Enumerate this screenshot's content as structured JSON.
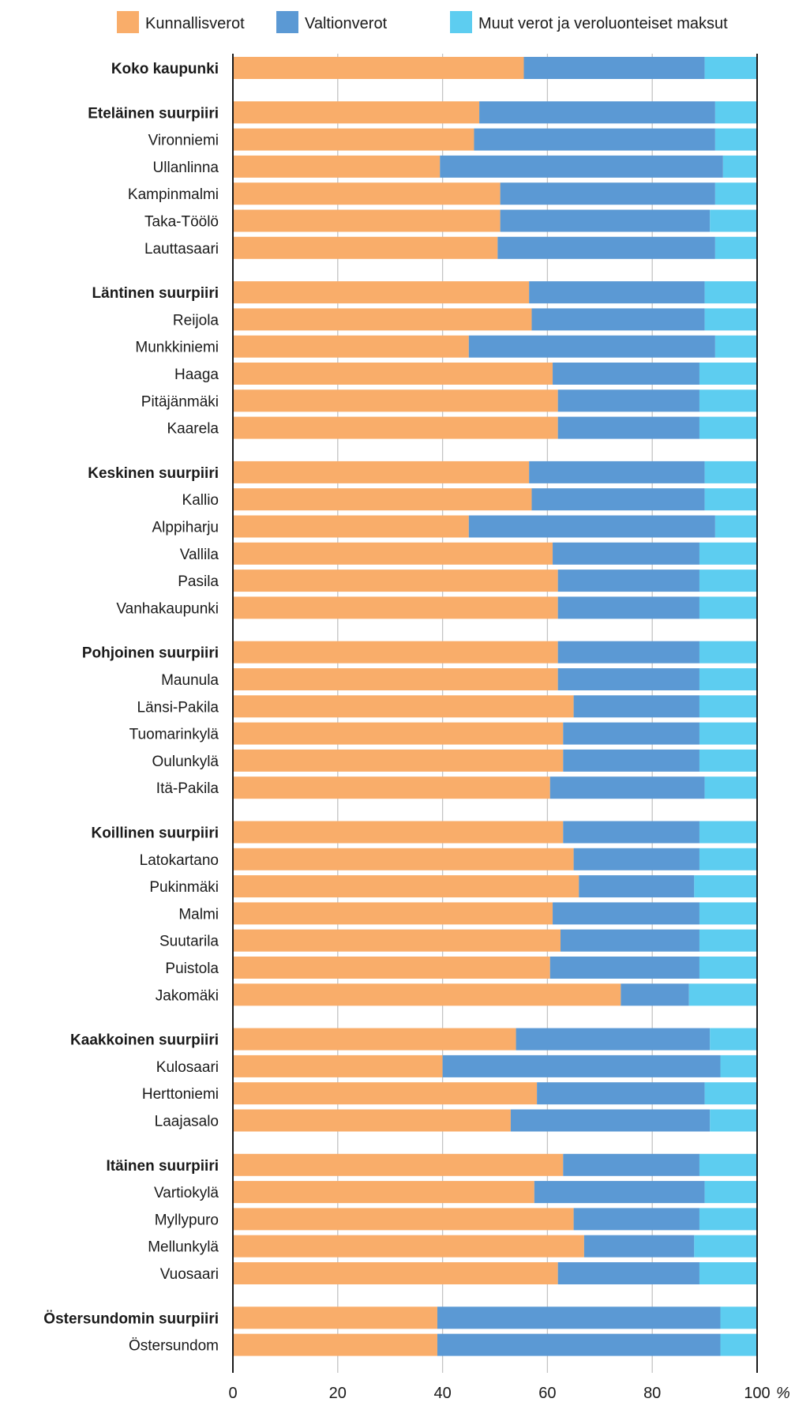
{
  "chart_data": {
    "type": "bar",
    "orientation": "horizontal",
    "stacked": true,
    "legend_position": "top",
    "xlim": [
      0,
      100
    ],
    "x_ticks": [
      "0",
      "20",
      "40",
      "60",
      "80",
      "100"
    ],
    "x_unit": "%",
    "grid": true,
    "series": [
      {
        "name": "Kunnallisverot",
        "color": "#f9ad6a"
      },
      {
        "name": "Valtionverot",
        "color": "#5b99d4"
      },
      {
        "name": "Muut verot ja veroluonteiset maksut",
        "color": "#5dcdf0"
      }
    ],
    "groups": [
      {
        "rows": [
          {
            "label": "Koko kaupunki",
            "bold": true,
            "values": [
              55.5,
              34.5,
              10.0
            ]
          }
        ]
      },
      {
        "rows": [
          {
            "label": "Eteläinen suurpiiri",
            "bold": true,
            "values": [
              47.0,
              45.0,
              8.0
            ]
          },
          {
            "label": "Vironniemi",
            "values": [
              46.0,
              46.0,
              8.0
            ]
          },
          {
            "label": "Ullanlinna",
            "values": [
              39.5,
              54.0,
              6.5
            ]
          },
          {
            "label": "Kampinmalmi",
            "values": [
              51.0,
              41.0,
              8.0
            ]
          },
          {
            "label": "Taka-Töölö",
            "values": [
              51.0,
              40.0,
              9.0
            ]
          },
          {
            "label": "Lauttasaari",
            "values": [
              50.5,
              41.5,
              8.0
            ]
          }
        ]
      },
      {
        "rows": [
          {
            "label": "Läntinen suurpiiri",
            "bold": true,
            "values": [
              56.5,
              33.5,
              10.0
            ]
          },
          {
            "label": "Reijola",
            "values": [
              57.0,
              33.0,
              10.0
            ]
          },
          {
            "label": "Munkkiniemi",
            "values": [
              45.0,
              47.0,
              8.0
            ]
          },
          {
            "label": "Haaga",
            "values": [
              61.0,
              28.0,
              11.0
            ]
          },
          {
            "label": "Pitäjänmäki",
            "values": [
              62.0,
              27.0,
              11.0
            ]
          },
          {
            "label": "Kaarela",
            "values": [
              62.0,
              27.0,
              11.0
            ]
          }
        ]
      },
      {
        "rows": [
          {
            "label": "Keskinen suurpiiri",
            "bold": true,
            "values": [
              56.5,
              33.5,
              10.0
            ]
          },
          {
            "label": "Kallio",
            "values": [
              57.0,
              33.0,
              10.0
            ]
          },
          {
            "label": "Alppiharju",
            "values": [
              45.0,
              47.0,
              8.0
            ]
          },
          {
            "label": "Vallila",
            "values": [
              61.0,
              28.0,
              11.0
            ]
          },
          {
            "label": "Pasila",
            "values": [
              62.0,
              27.0,
              11.0
            ]
          },
          {
            "label": "Vanhakaupunki",
            "values": [
              62.0,
              27.0,
              11.0
            ]
          }
        ]
      },
      {
        "rows": [
          {
            "label": "Pohjoinen suurpiiri",
            "bold": true,
            "values": [
              62.0,
              27.0,
              11.0
            ]
          },
          {
            "label": "Maunula",
            "values": [
              62.0,
              27.0,
              11.0
            ]
          },
          {
            "label": "Länsi-Pakila",
            "values": [
              65.0,
              24.0,
              11.0
            ]
          },
          {
            "label": "Tuomarinkylä",
            "values": [
              63.0,
              26.0,
              11.0
            ]
          },
          {
            "label": "Oulunkylä",
            "values": [
              63.0,
              26.0,
              11.0
            ]
          },
          {
            "label": "Itä-Pakila",
            "values": [
              60.5,
              29.5,
              10.0
            ]
          }
        ]
      },
      {
        "rows": [
          {
            "label": "Koillinen suurpiiri",
            "bold": true,
            "values": [
              63.0,
              26.0,
              11.0
            ]
          },
          {
            "label": "Latokartano",
            "values": [
              65.0,
              24.0,
              11.0
            ]
          },
          {
            "label": "Pukinmäki",
            "values": [
              66.0,
              22.0,
              12.0
            ]
          },
          {
            "label": "Malmi",
            "values": [
              61.0,
              28.0,
              11.0
            ]
          },
          {
            "label": "Suutarila",
            "values": [
              62.5,
              26.5,
              11.0
            ]
          },
          {
            "label": "Puistola",
            "values": [
              60.5,
              28.5,
              11.0
            ]
          },
          {
            "label": "Jakomäki",
            "values": [
              74.0,
              13.0,
              13.0
            ]
          }
        ]
      },
      {
        "rows": [
          {
            "label": "Kaakkoinen suurpiiri",
            "bold": true,
            "values": [
              54.0,
              37.0,
              9.0
            ]
          },
          {
            "label": "Kulosaari",
            "values": [
              40.0,
              53.0,
              7.0
            ]
          },
          {
            "label": "Herttoniemi",
            "values": [
              58.0,
              32.0,
              10.0
            ]
          },
          {
            "label": "Laajasalo",
            "values": [
              53.0,
              38.0,
              9.0
            ]
          }
        ]
      },
      {
        "rows": [
          {
            "label": "Itäinen suurpiiri",
            "bold": true,
            "values": [
              63.0,
              26.0,
              11.0
            ]
          },
          {
            "label": "Vartiokylä",
            "values": [
              57.5,
              32.5,
              10.0
            ]
          },
          {
            "label": "Myllypuro",
            "values": [
              65.0,
              24.0,
              11.0
            ]
          },
          {
            "label": "Mellunkylä",
            "values": [
              67.0,
              21.0,
              12.0
            ]
          },
          {
            "label": "Vuosaari",
            "values": [
              62.0,
              27.0,
              11.0
            ]
          }
        ]
      },
      {
        "rows": [
          {
            "label": "Östersundomin suurpiiri",
            "bold": true,
            "values": [
              39.0,
              54.0,
              7.0
            ]
          },
          {
            "label": "Östersundom",
            "values": [
              39.0,
              54.0,
              7.0
            ]
          }
        ]
      }
    ]
  }
}
